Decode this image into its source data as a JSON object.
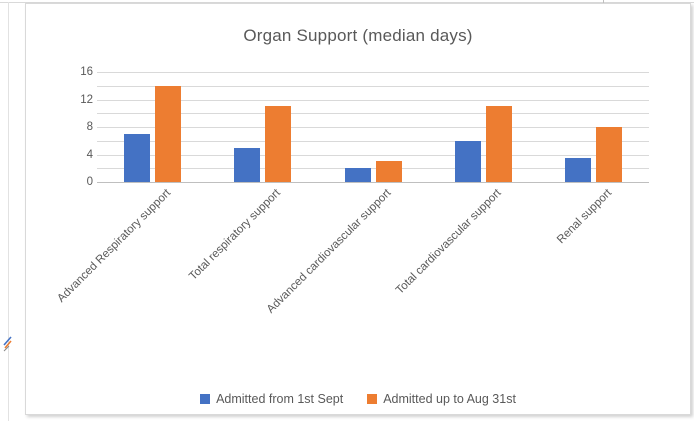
{
  "chart_data": {
    "type": "bar",
    "title": "Organ Support (median days)",
    "categories": [
      "Advanced Respiratory support",
      "Total respiratory support",
      "Advanced cardiovascular support",
      "Total cardiovascular support",
      "Renal support"
    ],
    "series": [
      {
        "name": "Admitted from 1st Sept",
        "color": "#4472C4",
        "values": [
          7,
          5,
          2,
          6,
          3.5
        ]
      },
      {
        "name": "Admitted up to Aug 31st",
        "color": "#ED7D31",
        "values": [
          14,
          11,
          3,
          11,
          8
        ]
      }
    ],
    "xlabel": "",
    "ylabel": "",
    "ylim": [
      0,
      16
    ],
    "yticks": [
      0,
      4,
      8,
      12,
      16
    ],
    "grid": true,
    "grid_interval": 2,
    "legend_position": "bottom",
    "x_label_rotation_deg": 45
  },
  "colors": {
    "series_blue": "#4472C4",
    "series_orange": "#ED7D31",
    "gridline": "#D9D9D9",
    "axis_line": "#BFBFBF",
    "text": "#595959",
    "frame_border": "#D9D9D9"
  },
  "icons": {
    "cursor": "cursor-icon"
  }
}
